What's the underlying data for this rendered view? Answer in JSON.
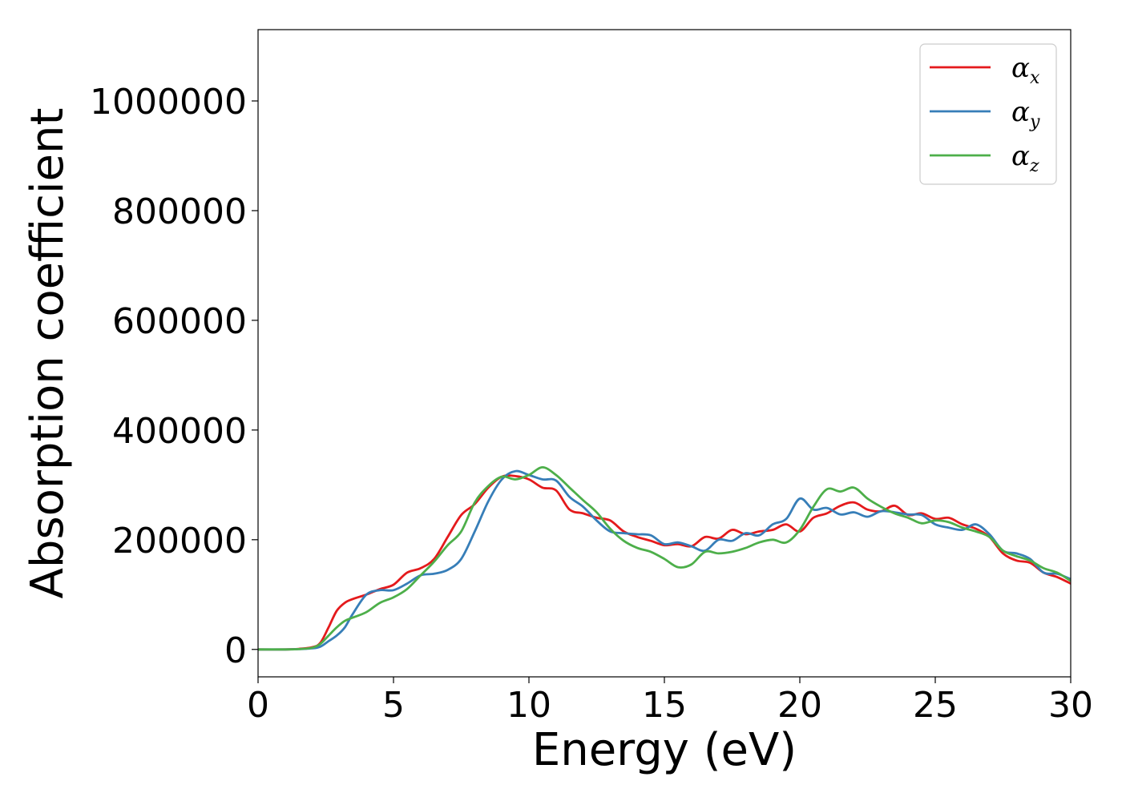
{
  "chart_data": {
    "type": "line",
    "xlabel": "Energy (eV)",
    "ylabel": "Absorption coefficient",
    "xlim": [
      0,
      30
    ],
    "ylim": [
      -50000,
      1130000
    ],
    "xticks": [
      0,
      5,
      10,
      15,
      20,
      25,
      30
    ],
    "xtick_labels": [
      "0",
      "5",
      "10",
      "15",
      "20",
      "25",
      "30"
    ],
    "yticks": [
      0,
      200000,
      400000,
      600000,
      800000,
      1000000
    ],
    "ytick_labels": [
      "0",
      "200000",
      "400000",
      "600000",
      "800000",
      "1000000"
    ],
    "grid": false,
    "legend_position": "top-right",
    "series": [
      {
        "name": "αx",
        "legend_base": "α",
        "legend_sub": "x",
        "color": "#e41a1c",
        "x": [
          0,
          1,
          1.5,
          2,
          2.3,
          2.6,
          2.9,
          3.2,
          3.5,
          4,
          4.5,
          5,
          5.5,
          6,
          6.5,
          7,
          7.5,
          8,
          8.5,
          9,
          9.5,
          10,
          10.5,
          11,
          11.5,
          12,
          12.5,
          13,
          13.5,
          14,
          14.5,
          15,
          15.5,
          16,
          16.5,
          17,
          17.5,
          18,
          18.5,
          19,
          19.5,
          20,
          20.5,
          21,
          21.5,
          22,
          22.5,
          23,
          23.5,
          24,
          24.5,
          25,
          25.5,
          26,
          26.5,
          27,
          27.5,
          28,
          28.5,
          29,
          29.5,
          30
        ],
        "y": [
          0,
          0,
          1000,
          4000,
          12000,
          40000,
          70000,
          85000,
          92000,
          100000,
          110000,
          118000,
          140000,
          148000,
          165000,
          205000,
          245000,
          265000,
          295000,
          315000,
          316000,
          310000,
          295000,
          290000,
          255000,
          248000,
          240000,
          235000,
          215000,
          205000,
          198000,
          190000,
          192000,
          188000,
          205000,
          202000,
          218000,
          210000,
          215000,
          218000,
          228000,
          215000,
          240000,
          248000,
          262000,
          268000,
          255000,
          252000,
          262000,
          245000,
          248000,
          238000,
          240000,
          228000,
          220000,
          205000,
          175000,
          162000,
          158000,
          140000,
          132000,
          120000
        ]
      },
      {
        "name": "αy",
        "legend_base": "α",
        "legend_sub": "y",
        "color": "#377eb8",
        "x": [
          0,
          1,
          1.5,
          2,
          2.3,
          2.6,
          2.9,
          3.2,
          3.5,
          4,
          4.5,
          5,
          5.5,
          6,
          6.5,
          7,
          7.5,
          8,
          8.5,
          9,
          9.5,
          10,
          10.5,
          11,
          11.5,
          12,
          12.5,
          13,
          13.5,
          14,
          14.5,
          15,
          15.5,
          16,
          16.5,
          17,
          17.5,
          18,
          18.5,
          19,
          19.5,
          20,
          20.5,
          21,
          21.5,
          22,
          22.5,
          23,
          23.5,
          24,
          24.5,
          25,
          25.5,
          26,
          26.5,
          27,
          27.5,
          28,
          28.5,
          29,
          29.5,
          30
        ],
        "y": [
          0,
          0,
          500,
          2000,
          5000,
          15000,
          25000,
          40000,
          65000,
          100000,
          108000,
          108000,
          120000,
          135000,
          138000,
          145000,
          165000,
          215000,
          270000,
          310000,
          325000,
          318000,
          310000,
          308000,
          278000,
          260000,
          235000,
          215000,
          212000,
          210000,
          208000,
          192000,
          195000,
          188000,
          180000,
          200000,
          198000,
          212000,
          208000,
          228000,
          238000,
          275000,
          255000,
          258000,
          246000,
          250000,
          242000,
          252000,
          250000,
          246000,
          245000,
          228000,
          222000,
          218000,
          228000,
          210000,
          180000,
          175000,
          165000,
          140000,
          138000,
          128000
        ]
      },
      {
        "name": "αz",
        "legend_base": "α",
        "legend_sub": "z",
        "color": "#4daf4a",
        "x": [
          0,
          1,
          1.5,
          2,
          2.3,
          2.6,
          2.9,
          3.2,
          3.5,
          4,
          4.5,
          5,
          5.5,
          6,
          6.5,
          7,
          7.5,
          8,
          8.5,
          9,
          9.5,
          10,
          10.5,
          11,
          11.5,
          12,
          12.5,
          13,
          13.5,
          14,
          14.5,
          15,
          15.5,
          16,
          16.5,
          17,
          17.5,
          18,
          18.5,
          19,
          19.5,
          20,
          20.5,
          21,
          21.5,
          22,
          22.5,
          23,
          23.5,
          24,
          24.5,
          25,
          25.5,
          26,
          26.5,
          27,
          27.5,
          28,
          28.5,
          29,
          29.5,
          30
        ],
        "y": [
          0,
          0,
          500,
          3000,
          10000,
          25000,
          40000,
          52000,
          58000,
          68000,
          85000,
          95000,
          110000,
          135000,
          160000,
          190000,
          215000,
          268000,
          298000,
          315000,
          310000,
          318000,
          332000,
          318000,
          295000,
          272000,
          250000,
          220000,
          198000,
          185000,
          178000,
          165000,
          150000,
          155000,
          178000,
          175000,
          178000,
          185000,
          195000,
          200000,
          195000,
          218000,
          260000,
          292000,
          288000,
          295000,
          275000,
          260000,
          248000,
          240000,
          230000,
          235000,
          232000,
          222000,
          215000,
          205000,
          180000,
          170000,
          162000,
          148000,
          140000,
          125000
        ]
      }
    ]
  }
}
